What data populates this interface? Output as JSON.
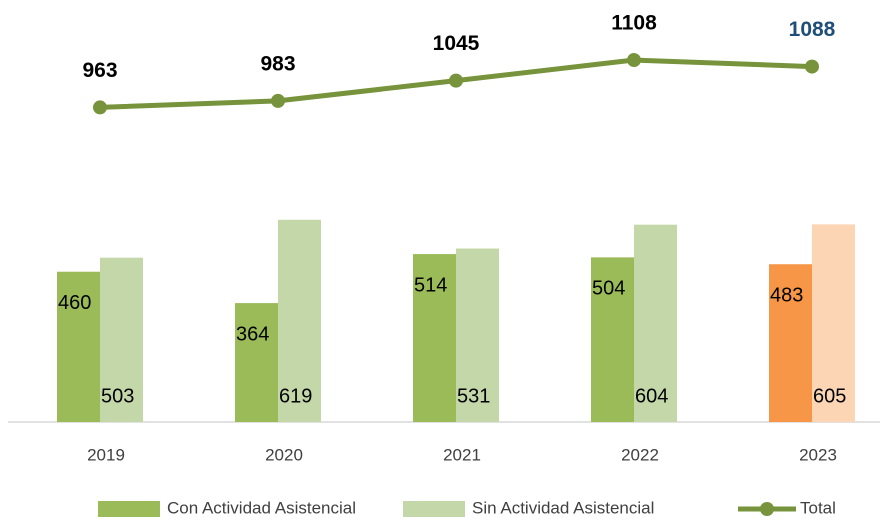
{
  "chart_data": {
    "type": "bar",
    "categories": [
      "2019",
      "2020",
      "2021",
      "2022",
      "2023"
    ],
    "series": [
      {
        "name": "Con Actividad Asistencial",
        "color": "#9bbb59",
        "colors": [
          "#9bbb59",
          "#9bbb59",
          "#9bbb59",
          "#9bbb59",
          "#f79646"
        ],
        "values": [
          460,
          364,
          514,
          504,
          483
        ]
      },
      {
        "name": "Sin Actividad Asistencial",
        "color": "#c4d7a8",
        "colors": [
          "#c4d7a8",
          "#c4d7a8",
          "#c4d7a8",
          "#c4d7a8",
          "#fcd5b4"
        ],
        "values": [
          503,
          619,
          531,
          604,
          605
        ]
      },
      {
        "name": "Total",
        "type": "line",
        "color": "#77933c",
        "label_colors": [
          "#000000",
          "#000000",
          "#000000",
          "#000000",
          "#1f4e79"
        ],
        "values": [
          963,
          983,
          1045,
          1108,
          1088
        ]
      }
    ],
    "ylim": [
      0,
      1200
    ],
    "legend": "bottom"
  }
}
